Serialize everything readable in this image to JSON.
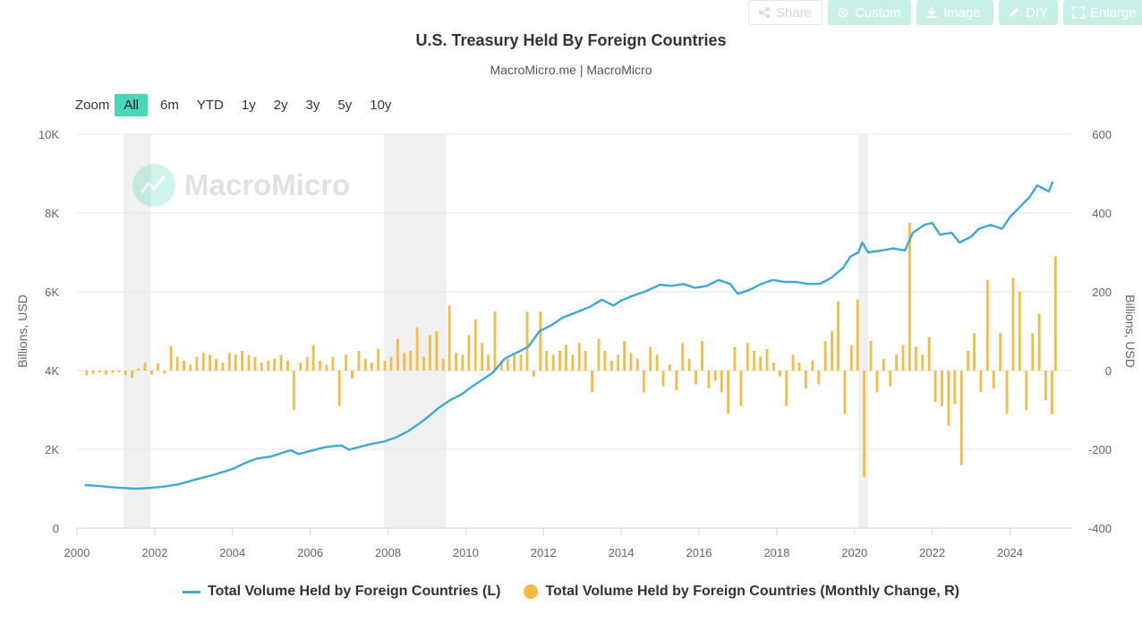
{
  "toolbar": {
    "share": "Share",
    "custom": "Custom",
    "image": "Image",
    "diy": "DIY",
    "enlarge": "Enlarge"
  },
  "zoom": {
    "label": "Zoom",
    "buttons": [
      "All",
      "6m",
      "YTD",
      "1y",
      "2y",
      "3y",
      "5y",
      "10y"
    ],
    "active": "All"
  },
  "watermark": "MacroMicro",
  "colors": {
    "line": "#3ea9d2",
    "bars": "#f6bb41",
    "recession": "#f0f0f0",
    "grid": "#e6e6e6",
    "accent": "#47d6b7"
  },
  "chart_data": {
    "type": "line+bar",
    "title": "U.S. Treasury Held By Foreign Countries",
    "subtitle": "MacroMicro.me | MacroMicro",
    "ylabel_left": "Billions, USD",
    "ylabel_right": "Billions, USD",
    "ylim_left": [
      0,
      10000
    ],
    "ylim_right": [
      -400,
      600
    ],
    "y_ticks_left": [
      "0",
      "2K",
      "4K",
      "6K",
      "8K",
      "10K"
    ],
    "y_ticks_right": [
      "-400",
      "-200",
      "0",
      "200",
      "400",
      "600"
    ],
    "x_ticks": [
      "2000",
      "2002",
      "2004",
      "2006",
      "2008",
      "2010",
      "2012",
      "2014",
      "2016",
      "2018",
      "2020",
      "2022",
      "2024"
    ],
    "xlim": [
      2000,
      2025.6
    ],
    "recessions": [
      [
        2001.2,
        2001.9
      ],
      [
        2007.9,
        2009.5
      ],
      [
        2020.1,
        2020.35
      ]
    ],
    "grid": true,
    "legend_position": "bottom",
    "series": [
      {
        "name": "Total Volume Held by Foreign Countries (L)",
        "axis": "left",
        "kind": "line",
        "points": [
          [
            2000.2,
            1090
          ],
          [
            2000.5,
            1075
          ],
          [
            2001.0,
            1030
          ],
          [
            2001.5,
            1000
          ],
          [
            2001.9,
            1020
          ],
          [
            2002.2,
            1050
          ],
          [
            2002.6,
            1110
          ],
          [
            2003.0,
            1220
          ],
          [
            2003.5,
            1350
          ],
          [
            2004.0,
            1500
          ],
          [
            2004.3,
            1640
          ],
          [
            2004.6,
            1760
          ],
          [
            2005.0,
            1820
          ],
          [
            2005.5,
            1980
          ],
          [
            2005.7,
            1880
          ],
          [
            2006.0,
            1960
          ],
          [
            2006.4,
            2060
          ],
          [
            2006.8,
            2100
          ],
          [
            2007.0,
            1990
          ],
          [
            2007.5,
            2120
          ],
          [
            2007.9,
            2200
          ],
          [
            2008.2,
            2300
          ],
          [
            2008.5,
            2450
          ],
          [
            2008.8,
            2650
          ],
          [
            2009.0,
            2800
          ],
          [
            2009.3,
            3050
          ],
          [
            2009.6,
            3250
          ],
          [
            2009.9,
            3400
          ],
          [
            2010.1,
            3550
          ],
          [
            2010.4,
            3750
          ],
          [
            2010.7,
            3950
          ],
          [
            2011.0,
            4300
          ],
          [
            2011.3,
            4450
          ],
          [
            2011.6,
            4600
          ],
          [
            2011.9,
            5000
          ],
          [
            2012.2,
            5150
          ],
          [
            2012.5,
            5350
          ],
          [
            2012.9,
            5500
          ],
          [
            2013.2,
            5620
          ],
          [
            2013.5,
            5800
          ],
          [
            2013.8,
            5650
          ],
          [
            2014.0,
            5780
          ],
          [
            2014.3,
            5900
          ],
          [
            2014.6,
            6000
          ],
          [
            2015.0,
            6180
          ],
          [
            2015.3,
            6150
          ],
          [
            2015.6,
            6200
          ],
          [
            2015.9,
            6100
          ],
          [
            2016.2,
            6150
          ],
          [
            2016.5,
            6300
          ],
          [
            2016.8,
            6200
          ],
          [
            2017.0,
            5950
          ],
          [
            2017.3,
            6050
          ],
          [
            2017.6,
            6200
          ],
          [
            2017.9,
            6300
          ],
          [
            2018.2,
            6250
          ],
          [
            2018.5,
            6250
          ],
          [
            2018.8,
            6200
          ],
          [
            2019.1,
            6200
          ],
          [
            2019.4,
            6350
          ],
          [
            2019.7,
            6600
          ],
          [
            2019.9,
            6900
          ],
          [
            2020.1,
            7000
          ],
          [
            2020.2,
            7250
          ],
          [
            2020.35,
            7000
          ],
          [
            2020.7,
            7050
          ],
          [
            2021.0,
            7100
          ],
          [
            2021.3,
            7050
          ],
          [
            2021.5,
            7500
          ],
          [
            2021.8,
            7700
          ],
          [
            2022.0,
            7750
          ],
          [
            2022.2,
            7450
          ],
          [
            2022.5,
            7500
          ],
          [
            2022.7,
            7250
          ],
          [
            2023.0,
            7400
          ],
          [
            2023.2,
            7600
          ],
          [
            2023.5,
            7700
          ],
          [
            2023.8,
            7600
          ],
          [
            2024.0,
            7900
          ],
          [
            2024.2,
            8100
          ],
          [
            2024.5,
            8400
          ],
          [
            2024.7,
            8700
          ],
          [
            2024.9,
            8600
          ],
          [
            2025.0,
            8550
          ],
          [
            2025.1,
            8800
          ]
        ]
      },
      {
        "name": "Total Volume Held by Foreign Countries (Monthly Change, R)",
        "axis": "right",
        "kind": "column",
        "points": [
          [
            2000.25,
            -12
          ],
          [
            2000.42,
            -8
          ],
          [
            2000.58,
            -5
          ],
          [
            2000.75,
            -10
          ],
          [
            2000.92,
            -6
          ],
          [
            2001.08,
            -4
          ],
          [
            2001.25,
            -12
          ],
          [
            2001.42,
            -18
          ],
          [
            2001.58,
            5
          ],
          [
            2001.75,
            20
          ],
          [
            2001.92,
            -10
          ],
          [
            2002.08,
            18
          ],
          [
            2002.25,
            -8
          ],
          [
            2002.42,
            62
          ],
          [
            2002.58,
            35
          ],
          [
            2002.75,
            25
          ],
          [
            2002.92,
            15
          ],
          [
            2003.08,
            35
          ],
          [
            2003.25,
            45
          ],
          [
            2003.42,
            40
          ],
          [
            2003.58,
            30
          ],
          [
            2003.75,
            20
          ],
          [
            2003.92,
            45
          ],
          [
            2004.08,
            40
          ],
          [
            2004.25,
            50
          ],
          [
            2004.42,
            40
          ],
          [
            2004.58,
            35
          ],
          [
            2004.75,
            20
          ],
          [
            2004.92,
            25
          ],
          [
            2005.08,
            30
          ],
          [
            2005.25,
            40
          ],
          [
            2005.42,
            25
          ],
          [
            2005.58,
            -100
          ],
          [
            2005.75,
            20
          ],
          [
            2005.92,
            35
          ],
          [
            2006.08,
            65
          ],
          [
            2006.25,
            25
          ],
          [
            2006.42,
            15
          ],
          [
            2006.58,
            35
          ],
          [
            2006.75,
            -90
          ],
          [
            2006.92,
            40
          ],
          [
            2007.08,
            -20
          ],
          [
            2007.25,
            50
          ],
          [
            2007.42,
            30
          ],
          [
            2007.58,
            20
          ],
          [
            2007.75,
            55
          ],
          [
            2007.92,
            25
          ],
          [
            2008.08,
            35
          ],
          [
            2008.25,
            80
          ],
          [
            2008.42,
            45
          ],
          [
            2008.58,
            50
          ],
          [
            2008.75,
            110
          ],
          [
            2008.92,
            35
          ],
          [
            2009.08,
            90
          ],
          [
            2009.25,
            100
          ],
          [
            2009.42,
            30
          ],
          [
            2009.58,
            165
          ],
          [
            2009.75,
            45
          ],
          [
            2009.92,
            40
          ],
          [
            2010.08,
            90
          ],
          [
            2010.25,
            130
          ],
          [
            2010.42,
            70
          ],
          [
            2010.58,
            40
          ],
          [
            2010.75,
            150
          ],
          [
            2010.92,
            25
          ],
          [
            2011.08,
            30
          ],
          [
            2011.25,
            45
          ],
          [
            2011.42,
            40
          ],
          [
            2011.58,
            150
          ],
          [
            2011.75,
            -15
          ],
          [
            2011.92,
            150
          ],
          [
            2012.08,
            50
          ],
          [
            2012.25,
            40
          ],
          [
            2012.42,
            50
          ],
          [
            2012.58,
            65
          ],
          [
            2012.75,
            40
          ],
          [
            2012.92,
            70
          ],
          [
            2013.08,
            50
          ],
          [
            2013.25,
            -55
          ],
          [
            2013.42,
            80
          ],
          [
            2013.58,
            50
          ],
          [
            2013.75,
            25
          ],
          [
            2013.92,
            40
          ],
          [
            2014.08,
            75
          ],
          [
            2014.25,
            45
          ],
          [
            2014.42,
            30
          ],
          [
            2014.58,
            -55
          ],
          [
            2014.75,
            60
          ],
          [
            2014.92,
            40
          ],
          [
            2015.08,
            -40
          ],
          [
            2015.25,
            15
          ],
          [
            2015.42,
            -50
          ],
          [
            2015.58,
            70
          ],
          [
            2015.75,
            30
          ],
          [
            2015.92,
            -35
          ],
          [
            2016.08,
            75
          ],
          [
            2016.25,
            -45
          ],
          [
            2016.42,
            -25
          ],
          [
            2016.58,
            -55
          ],
          [
            2016.75,
            -110
          ],
          [
            2016.92,
            60
          ],
          [
            2017.08,
            -90
          ],
          [
            2017.25,
            70
          ],
          [
            2017.42,
            50
          ],
          [
            2017.58,
            35
          ],
          [
            2017.75,
            55
          ],
          [
            2017.92,
            20
          ],
          [
            2018.08,
            -15
          ],
          [
            2018.25,
            -90
          ],
          [
            2018.42,
            40
          ],
          [
            2018.58,
            20
          ],
          [
            2018.75,
            -45
          ],
          [
            2018.92,
            25
          ],
          [
            2019.08,
            -35
          ],
          [
            2019.25,
            75
          ],
          [
            2019.42,
            100
          ],
          [
            2019.58,
            175
          ],
          [
            2019.75,
            -110
          ],
          [
            2019.92,
            65
          ],
          [
            2020.08,
            180
          ],
          [
            2020.25,
            -270
          ],
          [
            2020.42,
            75
          ],
          [
            2020.58,
            -55
          ],
          [
            2020.75,
            30
          ],
          [
            2020.92,
            -40
          ],
          [
            2021.08,
            40
          ],
          [
            2021.25,
            65
          ],
          [
            2021.42,
            375
          ],
          [
            2021.58,
            60
          ],
          [
            2021.75,
            40
          ],
          [
            2021.92,
            85
          ],
          [
            2022.08,
            -80
          ],
          [
            2022.25,
            -90
          ],
          [
            2022.42,
            -140
          ],
          [
            2022.58,
            -85
          ],
          [
            2022.75,
            -240
          ],
          [
            2022.92,
            50
          ],
          [
            2023.08,
            95
          ],
          [
            2023.25,
            -55
          ],
          [
            2023.42,
            230
          ],
          [
            2023.58,
            -45
          ],
          [
            2023.75,
            95
          ],
          [
            2023.92,
            -110
          ],
          [
            2024.08,
            235
          ],
          [
            2024.25,
            200
          ],
          [
            2024.42,
            -100
          ],
          [
            2024.58,
            95
          ],
          [
            2024.75,
            145
          ],
          [
            2024.92,
            -75
          ],
          [
            2025.08,
            -110
          ],
          [
            2025.17,
            290
          ]
        ]
      }
    ]
  }
}
